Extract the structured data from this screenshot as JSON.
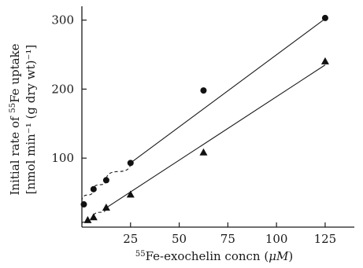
{
  "chart_data": {
    "type": "scatter",
    "xlabel_sup": "55",
    "xlabel_main": "Fe-exochelin concn (",
    "xlabel_unit": "μM",
    "xlabel_close": ")",
    "ylabel_line1_pre": "Initial rate of ",
    "ylabel_line1_sup": "55",
    "ylabel_line1_post": "Fe uptake",
    "ylabel_line2": "[nmol min⁻¹ (g dry wt)⁻¹]",
    "xlim": [
      0,
      140
    ],
    "ylim": [
      0,
      320
    ],
    "x_ticks": [
      25,
      50,
      75,
      100,
      125
    ],
    "y_ticks": [
      100,
      200,
      300
    ],
    "series": [
      {
        "marker": "circle",
        "points": [
          [
            1,
            33
          ],
          [
            6,
            55
          ],
          [
            12.5,
            68
          ],
          [
            25,
            93
          ],
          [
            62.5,
            198
          ],
          [
            125,
            303
          ]
        ],
        "fit": [
          [
            25,
            93
          ],
          [
            125,
            302
          ]
        ],
        "fit_low": [
          [
            0,
            38
          ],
          [
            6,
            55
          ],
          [
            12.5,
            68
          ],
          [
            25,
            93
          ]
        ]
      },
      {
        "marker": "triangle",
        "points": [
          [
            3,
            10
          ],
          [
            6,
            14
          ],
          [
            12.5,
            28
          ],
          [
            25,
            47
          ],
          [
            62.5,
            108
          ],
          [
            125,
            240
          ]
        ],
        "fit": [
          [
            12.5,
            28
          ],
          [
            125,
            235
          ]
        ],
        "fit_low": [
          [
            0,
            5
          ],
          [
            3,
            10
          ],
          [
            6,
            15
          ],
          [
            12.5,
            28
          ]
        ]
      }
    ]
  }
}
